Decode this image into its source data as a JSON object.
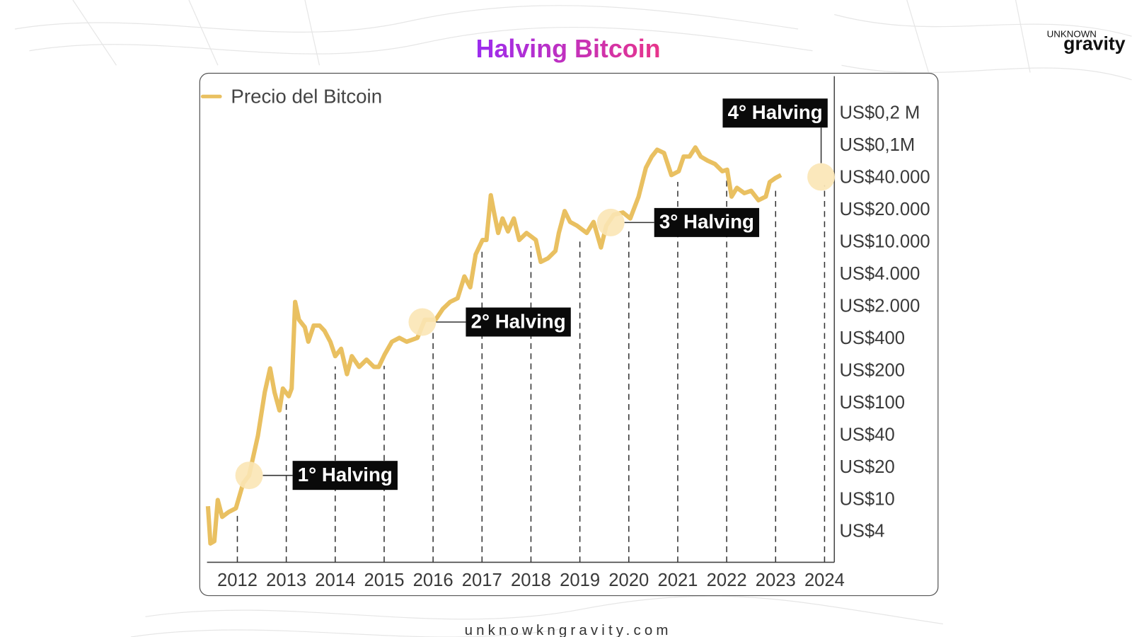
{
  "header": {
    "title": "Halving Bitcoin",
    "logo_top": "UNKNOWN",
    "logo_bottom": "gravity"
  },
  "chart_data": {
    "type": "line",
    "legend_position": "top-left",
    "y_axis_side": "right",
    "x": [
      2011.4,
      2011.45,
      2011.53,
      2011.6,
      2011.69,
      2011.82,
      2011.97,
      2012.12,
      2012.24,
      2012.42,
      2012.56,
      2012.67,
      2012.76,
      2012.86,
      2012.93,
      2013.05,
      2013.11,
      2013.18,
      2013.26,
      2013.38,
      2013.45,
      2013.56,
      2013.68,
      2013.78,
      2013.9,
      2014.0,
      2014.12,
      2014.24,
      2014.34,
      2014.49,
      2014.64,
      2014.79,
      2014.89,
      2015.01,
      2015.16,
      2015.31,
      2015.46,
      2015.68,
      2015.83,
      2016.05,
      2016.2,
      2016.35,
      2016.5,
      2016.64,
      2016.76,
      2016.87,
      2017.01,
      2017.09,
      2017.18,
      2017.24,
      2017.33,
      2017.42,
      2017.53,
      2017.65,
      2017.76,
      2017.91,
      2018.1,
      2018.2,
      2018.35,
      2018.5,
      2018.57,
      2018.69,
      2018.8,
      2018.94,
      2019.14,
      2019.28,
      2019.43,
      2019.54,
      2019.69,
      2019.88,
      2020.03,
      2020.2,
      2020.35,
      2020.47,
      2020.58,
      2020.72,
      2020.87,
      2021.02,
      2021.12,
      2021.24,
      2021.36,
      2021.47,
      2021.61,
      2021.76,
      2021.91,
      2022.01,
      2022.1,
      2022.21,
      2022.36,
      2022.5,
      2022.65,
      2022.8,
      2022.88,
      2022.99,
      2023.11
    ],
    "series": [
      {
        "name": "Precio del Bitcoin",
        "color": "#e9c061",
        "values": [
          8.4,
          2.9,
          3.1,
          10,
          6.2,
          7.1,
          7.9,
          14.4,
          17,
          40,
          127,
          213,
          127,
          82,
          138,
          117,
          138,
          2230,
          1050,
          725,
          378,
          790,
          790,
          610,
          378,
          277,
          325,
          188,
          277,
          220,
          257,
          220,
          220,
          287,
          378,
          426,
          378,
          426,
          1050,
          1050,
          1815,
          2230,
          2410,
          3860,
          3050,
          7120,
          10570,
          10570,
          27700,
          19700,
          12300,
          16800,
          12700,
          16800,
          10570,
          12300,
          10570,
          5770,
          6400,
          7870,
          12300,
          19700,
          15600,
          14400,
          12300,
          15600,
          8700,
          14400,
          18200,
          19100,
          16800,
          26900,
          54000,
          74000,
          90000,
          82000,
          43700,
          48800,
          74000,
          74000,
          96000,
          74000,
          66000,
          60000,
          48800,
          51000,
          26900,
          32500,
          29000,
          30500,
          24900,
          26900,
          36800,
          40000,
          43700
        ]
      }
    ],
    "xlim": [
      2011.38,
      2024.2
    ],
    "xticks": [
      2012,
      2013,
      2014,
      2015,
      2016,
      2017,
      2018,
      2019,
      2020,
      2021,
      2022,
      2023,
      2024
    ],
    "ylim": [
      1.7,
      450000
    ],
    "yticks": [
      {
        "value": 4,
        "label": "US$4"
      },
      {
        "value": 10,
        "label": "US$10"
      },
      {
        "value": 20,
        "label": "US$20"
      },
      {
        "value": 40,
        "label": "US$40"
      },
      {
        "value": 100,
        "label": "US$100"
      },
      {
        "value": 200,
        "label": "US$200"
      },
      {
        "value": 400,
        "label": "US$400"
      },
      {
        "value": 2000,
        "label": "US$2.000"
      },
      {
        "value": 4000,
        "label": "US$4.000"
      },
      {
        "value": 10000,
        "label": "US$10.000"
      },
      {
        "value": 20000,
        "label": "US$20.000"
      },
      {
        "value": 40000,
        "label": "US$40.000"
      },
      {
        "value": 100000,
        "label": "US$0,1M"
      },
      {
        "value": 200000,
        "label": "US$0,2 M"
      }
    ],
    "annotations": [
      {
        "text": "1° Halving",
        "x": 2012.24,
        "y": 17
      },
      {
        "text": "2° Halving",
        "x": 2015.78,
        "y": 940
      },
      {
        "text": "3° Halving",
        "x": 2019.63,
        "y": 15400
      },
      {
        "text": "4° Halving",
        "x": 2023.93,
        "y": 41500
      }
    ]
  },
  "footer": "unknowkngravity.com"
}
